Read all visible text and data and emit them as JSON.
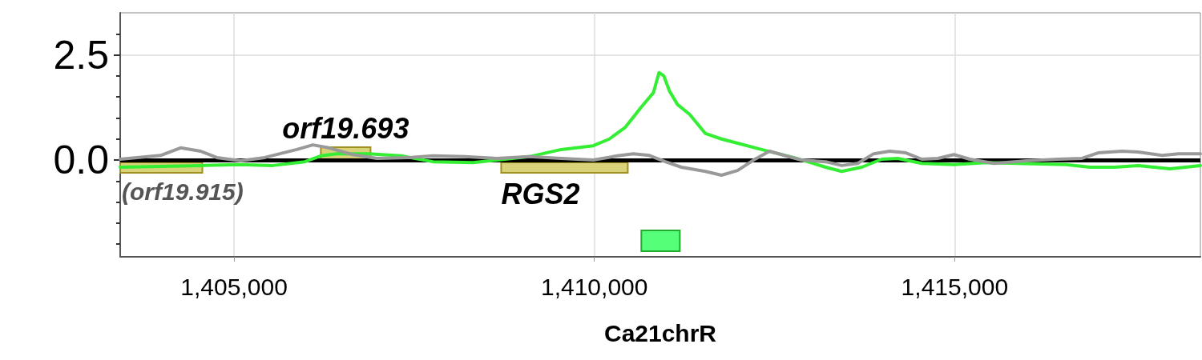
{
  "chart_data": {
    "type": "line",
    "xlabel": "Ca21chrR",
    "xlim": [
      1403420,
      1418410
    ],
    "xticks": [
      {
        "value": 1405000,
        "label": "1,405,000"
      },
      {
        "value": 1410000,
        "label": "1,410,000"
      },
      {
        "value": 1415000,
        "label": "1,415,000"
      }
    ],
    "ylim": [
      -2.3,
      3.5
    ],
    "yticks": [
      {
        "value": -2,
        "label": null
      },
      {
        "value": -1.5,
        "label": null
      },
      {
        "value": -1,
        "label": null
      },
      {
        "value": -0.5,
        "label": null
      },
      {
        "value": 0,
        "label": "0.0"
      },
      {
        "value": 0.5,
        "label": null
      },
      {
        "value": 1,
        "label": null
      },
      {
        "value": 1.5,
        "label": null
      },
      {
        "value": 2,
        "label": null
      },
      {
        "value": 2.5,
        "label": "2.5"
      },
      {
        "value": 3,
        "label": null
      }
    ],
    "grid": true,
    "line_style": "solid",
    "series": [
      {
        "color": "#33ee33",
        "x": [
          1403420,
          1404536,
          1405092,
          1405537,
          1405982,
          1406204,
          1406427,
          1406872,
          1407316,
          1407761,
          1408317,
          1408651,
          1409095,
          1409540,
          1409985,
          1410208,
          1410430,
          1410652,
          1410764,
          1410819,
          1410897,
          1410964,
          1411042,
          1411153,
          1411320,
          1411542,
          1411764,
          1411987,
          1412320,
          1412765,
          1413210,
          1413432,
          1413710,
          1413988,
          1414211,
          1414544,
          1414989,
          1415434,
          1415879,
          1416546,
          1416876,
          1417213,
          1417547,
          1417989,
          1418410
        ],
        "values": [
          -0.17,
          -0.13,
          -0.11,
          -0.13,
          -0.04,
          0.1,
          0.15,
          0.15,
          0.1,
          -0.04,
          -0.06,
          0,
          0.08,
          0.25,
          0.34,
          0.5,
          0.78,
          1.26,
          1.49,
          1.6,
          2.08,
          2.0,
          1.64,
          1.32,
          1.09,
          0.63,
          0.5,
          0.4,
          0.25,
          0.06,
          -0.17,
          -0.27,
          -0.17,
          0.02,
          0.04,
          -0.08,
          -0.11,
          -0.06,
          -0.08,
          -0.11,
          -0.17,
          -0.17,
          -0.13,
          -0.21,
          -0.13
        ]
      },
      {
        "color": "#999999",
        "x": [
          1403420,
          1403980,
          1404258,
          1404536,
          1404759,
          1405092,
          1405426,
          1405871,
          1406093,
          1406316,
          1406649,
          1406983,
          1407428,
          1407761,
          1408206,
          1408651,
          1409095,
          1409540,
          1409985,
          1410319,
          1410541,
          1410764,
          1410986,
          1411208,
          1411542,
          1411764,
          1411987,
          1412209,
          1412431,
          1412654,
          1412876,
          1413210,
          1413432,
          1413655,
          1413877,
          1414099,
          1414322,
          1414544,
          1414767,
          1414989,
          1415211,
          1415545,
          1415990,
          1416435,
          1416768,
          1416991,
          1417324,
          1417547,
          1417880,
          1418103,
          1418410
        ],
        "values": [
          0.02,
          0.11,
          0.29,
          0.21,
          0.06,
          -0.02,
          0.06,
          0.25,
          0.36,
          0.29,
          0.13,
          0.04,
          0.06,
          0.1,
          0.08,
          0.04,
          0.08,
          0.04,
          0,
          0.1,
          0.15,
          0.11,
          -0.04,
          -0.17,
          -0.27,
          -0.36,
          -0.25,
          0,
          0.21,
          0.1,
          0,
          -0.04,
          -0.13,
          -0.08,
          0.15,
          0.21,
          0.17,
          0.02,
          0.04,
          0.13,
          0.02,
          -0.08,
          -0.02,
          0.02,
          0.04,
          0.17,
          0.21,
          0.19,
          0.11,
          0.15,
          0.15
        ]
      }
    ],
    "ref_lines": [
      {
        "axis": "y",
        "value": 0,
        "color": "#000000"
      }
    ],
    "bands": [
      {
        "axis": "x",
        "from": 1403420,
        "to": 1404560,
        "color": "#d8d27a",
        "label": "(orf19.915)"
      },
      {
        "axis": "x",
        "from": 1406204,
        "to": 1406894,
        "color": "#d8d27a",
        "label": "orf19.693"
      },
      {
        "axis": "x",
        "from": 1408707,
        "to": 1410464,
        "color": "#d8d27a",
        "label": "RGS2"
      },
      {
        "axis": "x",
        "from": 1410652,
        "to": 1411186,
        "color": "#55ff77"
      }
    ]
  }
}
